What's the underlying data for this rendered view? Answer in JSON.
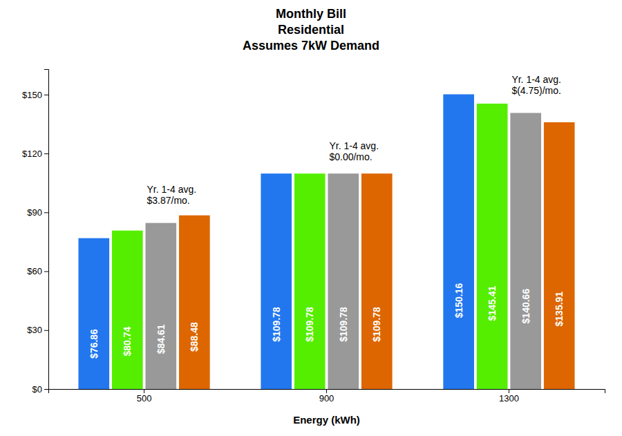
{
  "chart_data": {
    "type": "bar",
    "title": "Monthly Bill\nResidential\nAssumes 7kW Demand",
    "xlabel": "Energy (kWh)",
    "categories": [
      "500",
      "900",
      "1300"
    ],
    "series": [
      {
        "color": "#2277ee",
        "values": [
          76.86,
          109.78,
          150.16
        ],
        "value_labels": [
          "$76.86",
          "$109.78",
          "$150.16"
        ]
      },
      {
        "color": "#55ee00",
        "values": [
          80.74,
          109.78,
          145.41
        ],
        "value_labels": [
          "$80.74",
          "$109.78",
          "$145.41"
        ]
      },
      {
        "color": "#999999",
        "values": [
          84.61,
          109.78,
          140.66
        ],
        "value_labels": [
          "$84.61",
          "$109.78",
          "$140.66"
        ]
      },
      {
        "color": "#dd6600",
        "values": [
          88.48,
          109.78,
          135.91
        ],
        "value_labels": [
          "$88.48",
          "$109.78",
          "$135.91"
        ]
      }
    ],
    "annotations": [
      {
        "text": "Yr. 1-4 avg.\n$3.87/mo.",
        "category": "500",
        "y": 93
      },
      {
        "text": "Yr. 1-4 avg.\n$0.00/mo.",
        "category": "900",
        "y": 115
      },
      {
        "text": "Yr. 1-4 avg.\n$(4.75)/mo.",
        "category": "1300",
        "y": 149
      }
    ],
    "ylim": [
      0,
      163
    ],
    "yticks": [
      {
        "value": 0,
        "label": "$0"
      },
      {
        "value": 30,
        "label": "$30"
      },
      {
        "value": 60,
        "label": "$60"
      },
      {
        "value": 90,
        "label": "$90"
      },
      {
        "value": 120,
        "label": "$120"
      },
      {
        "value": 150,
        "label": "$150"
      }
    ],
    "data_labels": true,
    "grid": false
  }
}
